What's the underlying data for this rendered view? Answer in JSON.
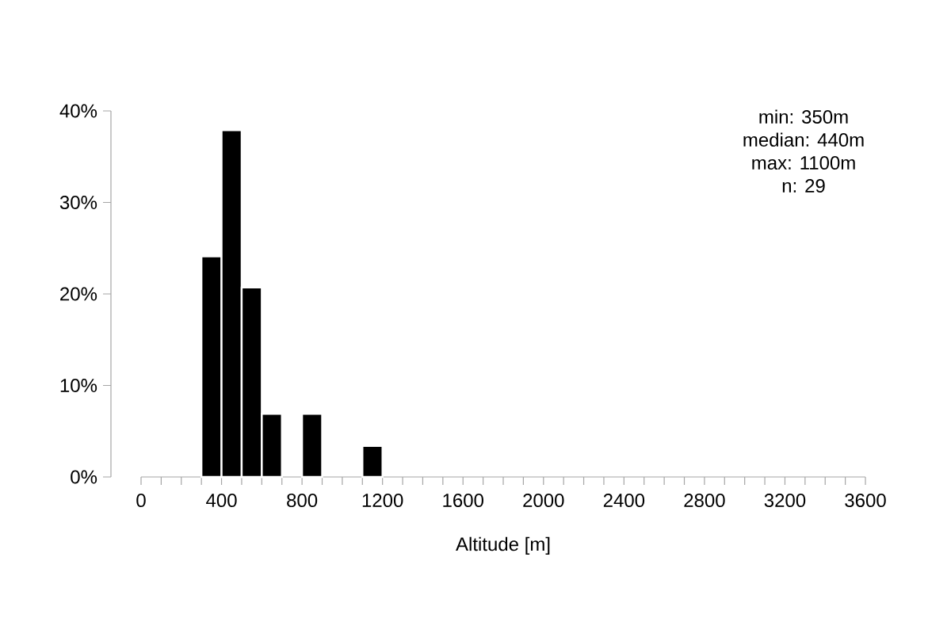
{
  "chart_data": {
    "type": "histogram",
    "xlabel": "Altitude [m]",
    "bins": [
      300,
      400,
      500,
      600,
      700,
      800,
      900,
      1000,
      1100,
      1200
    ],
    "values": [
      24.1,
      37.9,
      20.7,
      6.9,
      0,
      6.9,
      0,
      0,
      3.4
    ],
    "color": "#000000",
    "xlim": [
      0,
      3600
    ],
    "xticks": [
      0,
      {
        "value": 100,
        "label": null
      },
      {
        "value": 200,
        "label": null
      },
      {
        "value": 300,
        "label": null
      },
      400,
      {
        "value": 500,
        "label": null
      },
      {
        "value": 600,
        "label": null
      },
      {
        "value": 700,
        "label": null
      },
      800,
      {
        "value": 900,
        "label": null
      },
      {
        "value": 1000,
        "label": null
      },
      {
        "value": 1100,
        "label": null
      },
      1200,
      {
        "value": 1300,
        "label": null
      },
      {
        "value": 1400,
        "label": null
      },
      {
        "value": 1500,
        "label": null
      },
      1600,
      {
        "value": 1700,
        "label": null
      },
      {
        "value": 1800,
        "label": null
      },
      {
        "value": 1900,
        "label": null
      },
      2000,
      {
        "value": 2100,
        "label": null
      },
      {
        "value": 2200,
        "label": null
      },
      {
        "value": 2300,
        "label": null
      },
      2400,
      {
        "value": 2500,
        "label": null
      },
      {
        "value": 2600,
        "label": null
      },
      {
        "value": 2700,
        "label": null
      },
      2800,
      {
        "value": 2900,
        "label": null
      },
      {
        "value": 3000,
        "label": null
      },
      {
        "value": 3100,
        "label": null
      },
      3200,
      {
        "value": 3300,
        "label": null
      },
      {
        "value": 3400,
        "label": null
      },
      {
        "value": 3500,
        "label": null
      },
      3600
    ],
    "ylim": [
      0,
      40
    ],
    "yticks": [
      {
        "value": 0,
        "label": "0%"
      },
      {
        "value": 10,
        "label": "10%"
      },
      {
        "value": 20,
        "label": "20%"
      },
      {
        "value": 30,
        "label": "30%"
      },
      {
        "value": 40,
        "label": "40%"
      }
    ],
    "annotations": [
      "min: 350m",
      "median: 440m",
      "max: 1100m",
      "n:  29"
    ]
  }
}
